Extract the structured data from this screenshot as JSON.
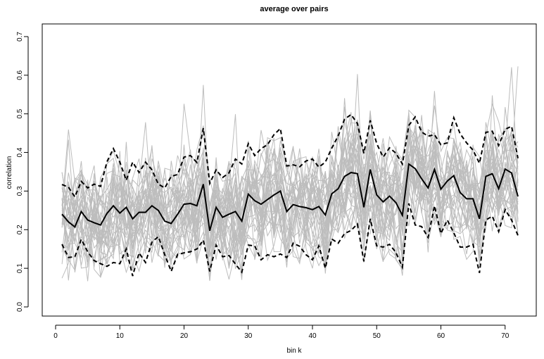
{
  "chart_data": {
    "type": "line",
    "title": "average over pairs",
    "xlabel": "bin k",
    "ylabel": "correlation",
    "xlim": [
      1,
      72
    ],
    "ylim": [
      0.0,
      0.7
    ],
    "x_ticks": [
      "0",
      "10",
      "20",
      "30",
      "40",
      "50",
      "60",
      "70"
    ],
    "y_ticks": [
      "0.0",
      "0.1",
      "0.2",
      "0.3",
      "0.4",
      "0.5",
      "0.6",
      "0.7"
    ],
    "grid": false,
    "legend": "none",
    "colors": {
      "background_series": "#bdbdbd",
      "mean": "#000000",
      "band": "#000000"
    },
    "x": [
      1,
      2,
      3,
      4,
      5,
      6,
      7,
      8,
      9,
      10,
      11,
      12,
      13,
      14,
      15,
      16,
      17,
      18,
      19,
      20,
      21,
      22,
      23,
      24,
      25,
      26,
      27,
      28,
      29,
      30,
      31,
      32,
      33,
      34,
      35,
      36,
      37,
      38,
      39,
      40,
      41,
      42,
      43,
      44,
      45,
      46,
      47,
      48,
      49,
      50,
      51,
      52,
      53,
      54,
      55,
      56,
      57,
      58,
      59,
      60,
      61,
      62,
      63,
      64,
      65,
      66,
      67,
      68,
      69,
      70,
      71,
      72
    ],
    "series": [
      {
        "style": "solid",
        "values": [
          0.24,
          0.22,
          0.207,
          0.247,
          0.225,
          0.218,
          0.212,
          0.242,
          0.262,
          0.243,
          0.258,
          0.228,
          0.245,
          0.245,
          0.262,
          0.25,
          0.222,
          0.216,
          0.24,
          0.266,
          0.268,
          0.262,
          0.318,
          0.197,
          0.258,
          0.232,
          0.24,
          0.247,
          0.222,
          0.292,
          0.275,
          0.266,
          0.278,
          0.29,
          0.3,
          0.247,
          0.265,
          0.26,
          0.257,
          0.252,
          0.26,
          0.238,
          0.293,
          0.306,
          0.338,
          0.348,
          0.345,
          0.258,
          0.356,
          0.29,
          0.272,
          0.287,
          0.27,
          0.237,
          0.37,
          0.358,
          0.332,
          0.308,
          0.356,
          0.305,
          0.326,
          0.34,
          0.296,
          0.28,
          0.28,
          0.228,
          0.338,
          0.345,
          0.306,
          0.357,
          0.347,
          0.286
        ]
      },
      {
        "style": "dashed",
        "values": [
          0.317,
          0.31,
          0.285,
          0.325,
          0.308,
          0.318,
          0.312,
          0.376,
          0.41,
          0.375,
          0.328,
          0.375,
          0.348,
          0.375,
          0.355,
          0.318,
          0.308,
          0.338,
          0.343,
          0.388,
          0.392,
          0.374,
          0.463,
          0.32,
          0.355,
          0.335,
          0.347,
          0.383,
          0.37,
          0.423,
          0.392,
          0.41,
          0.42,
          0.446,
          0.462,
          0.365,
          0.368,
          0.363,
          0.378,
          0.383,
          0.362,
          0.375,
          0.411,
          0.443,
          0.486,
          0.498,
          0.475,
          0.398,
          0.483,
          0.423,
          0.388,
          0.412,
          0.398,
          0.37,
          0.47,
          0.492,
          0.453,
          0.442,
          0.446,
          0.42,
          0.425,
          0.49,
          0.448,
          0.425,
          0.406,
          0.372,
          0.452,
          0.455,
          0.418,
          0.46,
          0.468,
          0.385
        ]
      },
      {
        "style": "dashed",
        "values": [
          0.162,
          0.128,
          0.13,
          0.175,
          0.143,
          0.12,
          0.112,
          0.105,
          0.115,
          0.112,
          0.15,
          0.08,
          0.14,
          0.115,
          0.168,
          0.182,
          0.135,
          0.092,
          0.136,
          0.14,
          0.143,
          0.15,
          0.173,
          0.092,
          0.16,
          0.13,
          0.133,
          0.111,
          0.09,
          0.16,
          0.158,
          0.122,
          0.135,
          0.13,
          0.137,
          0.128,
          0.165,
          0.157,
          0.135,
          0.122,
          0.158,
          0.1,
          0.176,
          0.165,
          0.19,
          0.198,
          0.215,
          0.118,
          0.228,
          0.158,
          0.155,
          0.162,
          0.141,
          0.103,
          0.268,
          0.212,
          0.208,
          0.18,
          0.262,
          0.19,
          0.225,
          0.192,
          0.155,
          0.155,
          0.162,
          0.088,
          0.225,
          0.235,
          0.195,
          0.252,
          0.225,
          0.185
        ]
      }
    ]
  }
}
